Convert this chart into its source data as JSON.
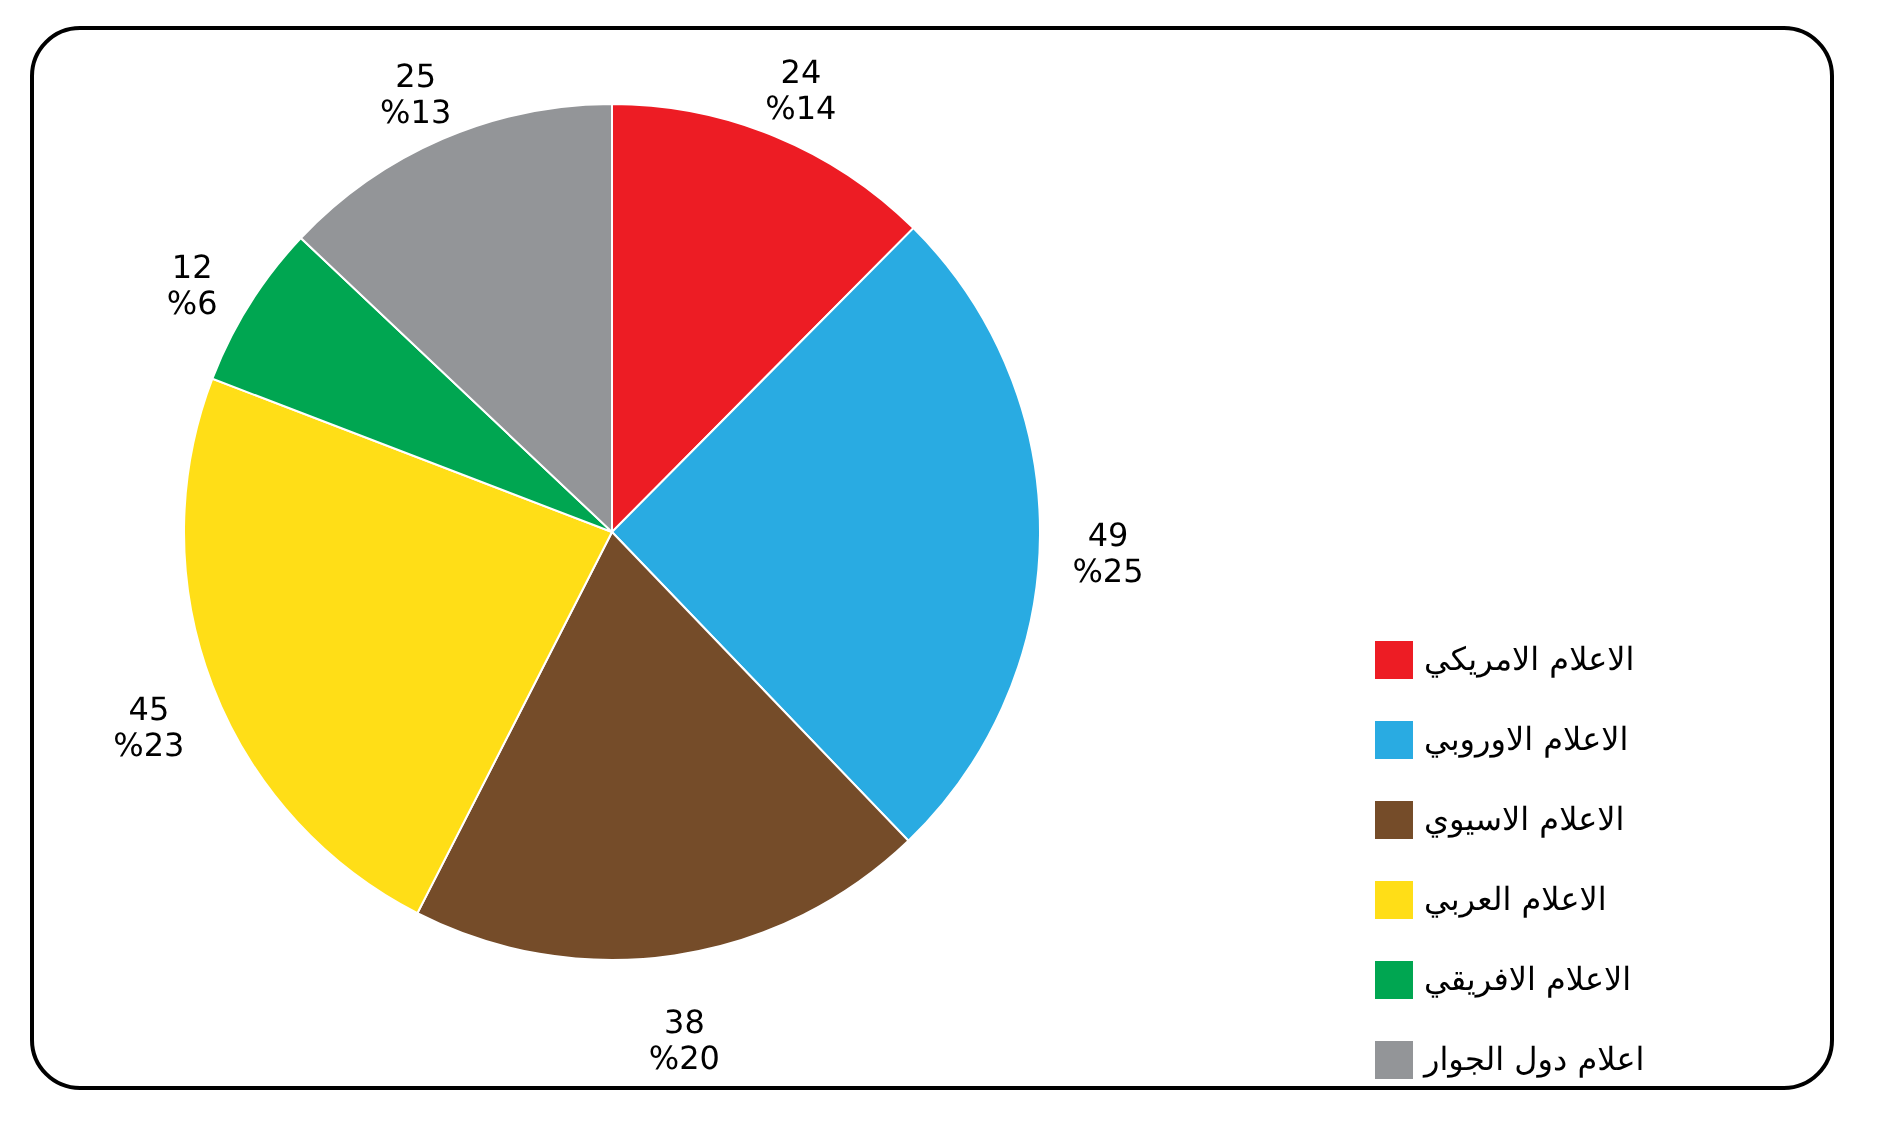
{
  "chart_data": {
    "type": "pie",
    "categories": [
      "الاعلام الامريكي",
      "الاعلام الاوروبي",
      "الاعلام الاسيوي",
      "الاعلام العربي",
      "الاعلام الافريقي",
      "اعلام دول الجوار"
    ],
    "values": [
      24,
      49,
      38,
      45,
      12,
      25
    ],
    "colors": [
      "#ed1c24",
      "#29abe2",
      "#754c29",
      "#ffde17",
      "#00a651",
      "#939598"
    ],
    "value_labels": [
      "24\n%14",
      "49\n%25",
      "38\n%20",
      "45\n%23",
      "12\n%6",
      "25\n%13"
    ],
    "legend": "bottom right"
  }
}
